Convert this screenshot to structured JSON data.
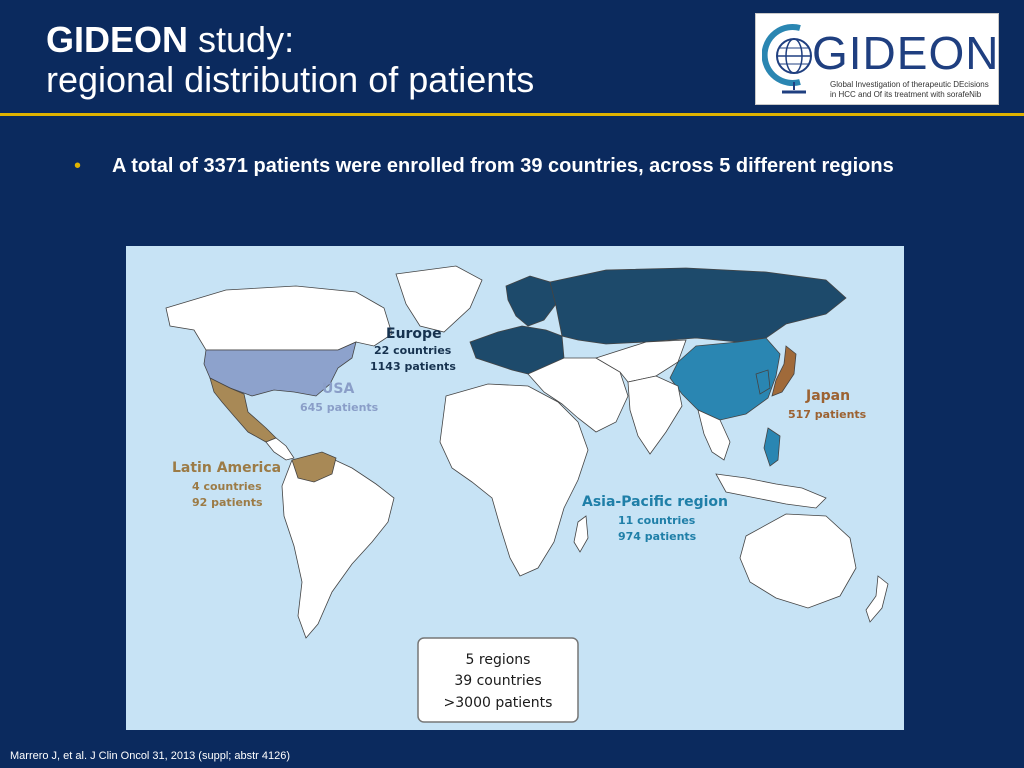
{
  "title": {
    "bold": "GIDEON",
    "rest": " study:",
    "line2": "regional distribution of patients"
  },
  "logo": {
    "text": "GIDEON",
    "tagline1": "Global Investigation of therapeutic DEcisions",
    "tagline2": "in HCC and Of its treatment with sorafeNib",
    "icon": "globe-icon"
  },
  "bullet": "A total of 3371 patients were enrolled from 39 countries, across 5 different regions",
  "regions": [
    {
      "name": "Europe",
      "countries": "22 countries",
      "patients": "1143 patients",
      "color": "#1d4a6b"
    },
    {
      "name": "USA",
      "countries": "",
      "patients": "645 patients",
      "color": "#8da2cc"
    },
    {
      "name": "Latin America",
      "countries": "4 countries",
      "patients": "92 patients",
      "color": "#a88956"
    },
    {
      "name": "Japan",
      "countries": "",
      "patients": "517 patients",
      "color": "#a06a3a"
    },
    {
      "name": "Asia-Pacific region",
      "countries": "11 countries",
      "patients": "974 patients",
      "color": "#2a86b2"
    }
  ],
  "summary": {
    "line1": "5 regions",
    "line2": "39 countries",
    "line3": ">3000 patients"
  },
  "footnote": "Marrero J, et al. J Clin Oncol 31, 2013 (suppl; abstr 4126)",
  "colors": {
    "background": "#0b2a5e",
    "accent": "#e0b300",
    "ocean": "#c7e3f5",
    "land": "#ffffff"
  }
}
